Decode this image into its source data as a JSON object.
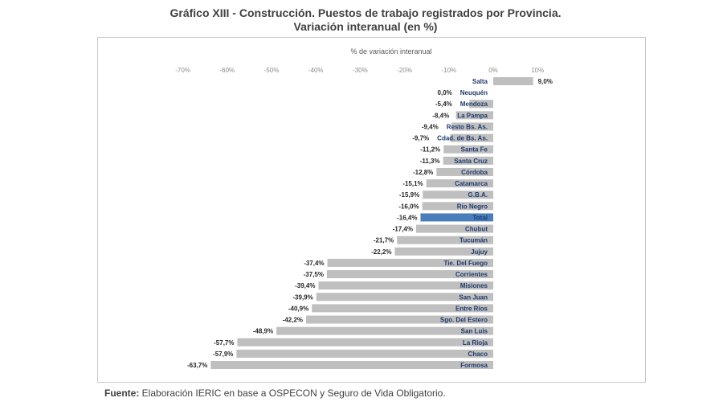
{
  "chart_data": {
    "type": "bar",
    "orientation": "horizontal",
    "title": "Gráfico XIII - Construcción. Puestos de trabajo registrados por Provincia.",
    "subtitle": "Variación interanual (en %)",
    "xlabel": "% de variación interanual",
    "xlim": [
      -70,
      10
    ],
    "x_ticks": [
      "-70%",
      "-60%",
      "-50%",
      "-40%",
      "-30%",
      "-20%",
      "-10%",
      "0%",
      "10%"
    ],
    "x_tick_values": [
      -70,
      -60,
      -50,
      -40,
      -30,
      -20,
      -10,
      0,
      10
    ],
    "grid": false,
    "categories": [
      "Salta",
      "Neuquén",
      "Mendoza",
      "La Pampa",
      "Resto Bs. As.",
      "Cdad. de Bs. As.",
      "Santa Fe",
      "Santa Cruz",
      "Córdoba",
      "Catamarca",
      "G.B.A.",
      "Río Negro",
      "Total",
      "Chubut",
      "Tucumán",
      "Jujuy",
      "Tie. Del Fuego",
      "Corrientes",
      "Misiones",
      "San Juan",
      "Entre Ríos",
      "Sgo. Del Estero",
      "San Luis",
      "La Rioja",
      "Chaco",
      "Formosa"
    ],
    "values": [
      9.0,
      0.0,
      -5.4,
      -8.4,
      -9.4,
      -9.7,
      -11.2,
      -11.3,
      -12.8,
      -15.1,
      -15.9,
      -16.0,
      -16.4,
      -17.4,
      -21.7,
      -22.2,
      -37.4,
      -37.5,
      -39.4,
      -39.9,
      -40.9,
      -42.2,
      -48.9,
      -57.7,
      -57.9,
      -63.7
    ],
    "value_labels": [
      "9,0%",
      "0,0%",
      "-5,4%",
      "-8,4%",
      "-9,4%",
      "-9,7%",
      "-11,2%",
      "-11,3%",
      "-12,8%",
      "-15,1%",
      "-15,9%",
      "-16,0%",
      "-16,4%",
      "-17,4%",
      "-21,7%",
      "-22,2%",
      "-37,4%",
      "-37,5%",
      "-39,4%",
      "-39,9%",
      "-40,9%",
      "-42,2%",
      "-48,9%",
      "-57,7%",
      "-57,9%",
      "-63,7%"
    ],
    "highlight_category": "Total",
    "colors": {
      "bar": "#bfbfbf",
      "highlight": "#4a7ebb",
      "category_label": "#1f3a6e",
      "value_label": "#262626",
      "tick": "#8c8c8c"
    }
  },
  "source": {
    "label": "Fuente:",
    "text": " Elaboración IERIC en base a OSPECON y Seguro de Vida Obligatorio."
  }
}
